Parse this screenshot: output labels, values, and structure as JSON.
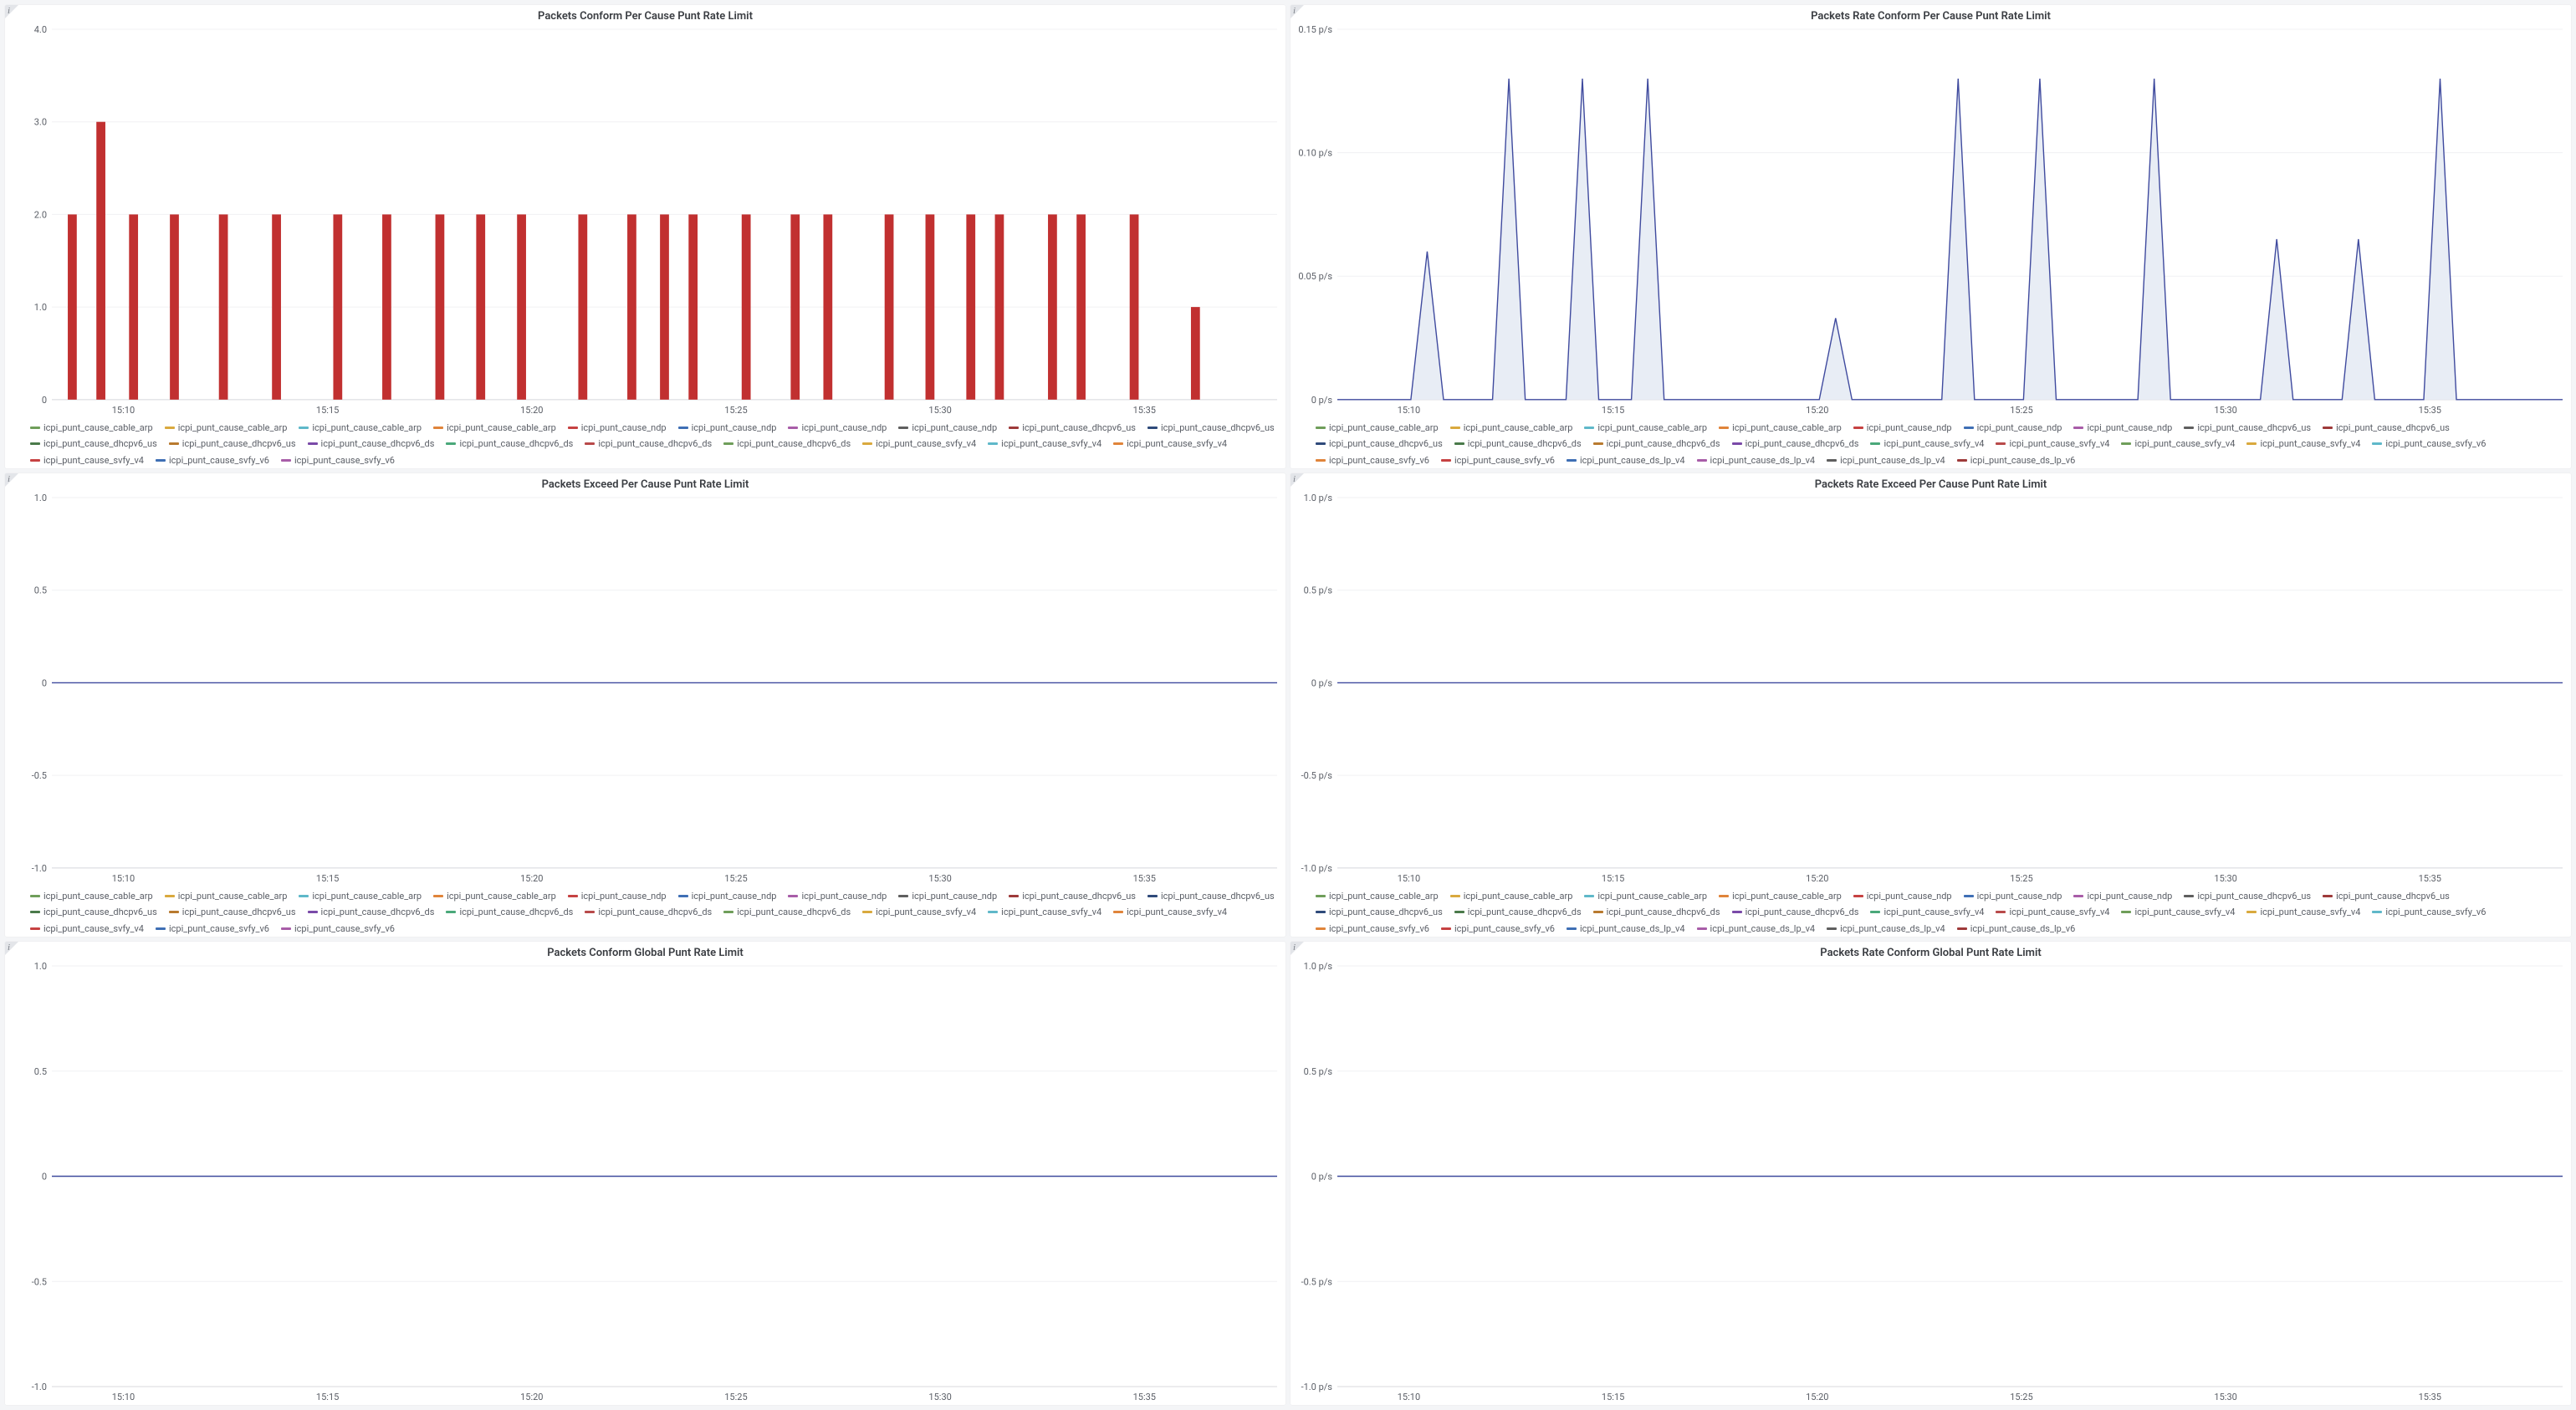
{
  "colors": {
    "bg": "#ffffff",
    "grid": "#f0f1f3",
    "axis": "#d8d9dd",
    "text": "#5a5e66",
    "title": "#3a3d42",
    "corner": "#e3e5e9"
  },
  "x_axis": {
    "ticks": [
      "15:10",
      "15:15",
      "15:20",
      "15:25",
      "15:30",
      "15:35"
    ],
    "domain": [
      0,
      30
    ]
  },
  "legend_colors": [
    "#6f9e5a",
    "#d9a93e",
    "#5fb8c9",
    "#e0843a",
    "#c64242",
    "#3f6fb5",
    "#a85da8",
    "#5f5f5f",
    "#9e3a3a",
    "#2f4a7a",
    "#4a7a4a",
    "#b87a2f",
    "#7a4aa8",
    "#4aa87a",
    "#b84a4a"
  ],
  "legend_a": [
    "icpi_punt_cause_cable_arp",
    "icpi_punt_cause_cable_arp",
    "icpi_punt_cause_cable_arp",
    "icpi_punt_cause_cable_arp",
    "icpi_punt_cause_ndp",
    "icpi_punt_cause_ndp",
    "icpi_punt_cause_ndp",
    "icpi_punt_cause_ndp",
    "icpi_punt_cause_dhcpv6_us",
    "icpi_punt_cause_dhcpv6_us",
    "icpi_punt_cause_dhcpv6_us",
    "icpi_punt_cause_dhcpv6_us",
    "icpi_punt_cause_dhcpv6_ds",
    "icpi_punt_cause_dhcpv6_ds",
    "icpi_punt_cause_dhcpv6_ds",
    "icpi_punt_cause_dhcpv6_ds",
    "icpi_punt_cause_svfy_v4",
    "icpi_punt_cause_svfy_v4",
    "icpi_punt_cause_svfy_v4",
    "icpi_punt_cause_svfy_v4",
    "icpi_punt_cause_svfy_v6",
    "icpi_punt_cause_svfy_v6"
  ],
  "legend_b": [
    "icpi_punt_cause_cable_arp",
    "icpi_punt_cause_cable_arp",
    "icpi_punt_cause_cable_arp",
    "icpi_punt_cause_cable_arp",
    "icpi_punt_cause_ndp",
    "icpi_punt_cause_ndp",
    "icpi_punt_cause_ndp",
    "icpi_punt_cause_dhcpv6_us",
    "icpi_punt_cause_dhcpv6_us",
    "icpi_punt_cause_dhcpv6_us",
    "icpi_punt_cause_dhcpv6_ds",
    "icpi_punt_cause_dhcpv6_ds",
    "icpi_punt_cause_dhcpv6_ds",
    "icpi_punt_cause_svfy_v4",
    "icpi_punt_cause_svfy_v4",
    "icpi_punt_cause_svfy_v4",
    "icpi_punt_cause_svfy_v4",
    "icpi_punt_cause_svfy_v6",
    "icpi_punt_cause_svfy_v6",
    "icpi_punt_cause_svfy_v6",
    "icpi_punt_cause_ds_lp_v4",
    "icpi_punt_cause_ds_lp_v4",
    "icpi_punt_cause_ds_lp_v4",
    "icpi_punt_cause_ds_lp_v6"
  ],
  "panels": [
    {
      "id": "p1",
      "title": "Packets Conform Per Cause Punt Rate Limit",
      "type": "bar",
      "ylim": [
        0,
        4.0
      ],
      "yticks": [
        0,
        1.0,
        2.0,
        3.0,
        4.0
      ],
      "ytick_labels": [
        "0",
        "1.0",
        "2.0",
        "3.0",
        "4.0"
      ],
      "bar_color": "#c13030",
      "bar_width": 0.22,
      "bars": [
        {
          "x": 0.5,
          "y": 2
        },
        {
          "x": 1.2,
          "y": 3
        },
        {
          "x": 2.0,
          "y": 2
        },
        {
          "x": 3.0,
          "y": 2
        },
        {
          "x": 4.2,
          "y": 2
        },
        {
          "x": 5.5,
          "y": 2
        },
        {
          "x": 7.0,
          "y": 2
        },
        {
          "x": 8.2,
          "y": 2
        },
        {
          "x": 9.5,
          "y": 2
        },
        {
          "x": 10.5,
          "y": 2
        },
        {
          "x": 11.5,
          "y": 2
        },
        {
          "x": 13.0,
          "y": 2
        },
        {
          "x": 14.2,
          "y": 2
        },
        {
          "x": 15.0,
          "y": 2
        },
        {
          "x": 15.7,
          "y": 2
        },
        {
          "x": 17.0,
          "y": 2
        },
        {
          "x": 18.2,
          "y": 2
        },
        {
          "x": 19.0,
          "y": 2
        },
        {
          "x": 20.5,
          "y": 2
        },
        {
          "x": 21.5,
          "y": 2
        },
        {
          "x": 22.5,
          "y": 2
        },
        {
          "x": 23.2,
          "y": 2
        },
        {
          "x": 24.5,
          "y": 2
        },
        {
          "x": 25.2,
          "y": 2
        },
        {
          "x": 26.5,
          "y": 2
        },
        {
          "x": 28.0,
          "y": 1
        }
      ],
      "legend": "a"
    },
    {
      "id": "p2",
      "title": "Packets Rate Conform Per Cause Punt Rate Limit",
      "type": "area",
      "ylim": [
        0,
        0.15
      ],
      "yticks": [
        0,
        0.05,
        0.1,
        0.15
      ],
      "ytick_labels": [
        "0 p/s",
        "0.05 p/s",
        "0.10 p/s",
        "0.15 p/s"
      ],
      "line_color": "#3f4a9e",
      "fill_color": "#e8edf5",
      "points": [
        [
          0,
          0
        ],
        [
          1.8,
          0
        ],
        [
          2.2,
          0.06
        ],
        [
          2.6,
          0
        ],
        [
          3.8,
          0
        ],
        [
          4.2,
          0.13
        ],
        [
          4.6,
          0
        ],
        [
          5.6,
          0
        ],
        [
          6.0,
          0.13
        ],
        [
          6.4,
          0
        ],
        [
          7.2,
          0
        ],
        [
          7.6,
          0.13
        ],
        [
          8.0,
          0
        ],
        [
          11.8,
          0
        ],
        [
          12.2,
          0.033
        ],
        [
          12.6,
          0
        ],
        [
          14.8,
          0
        ],
        [
          15.2,
          0.13
        ],
        [
          15.6,
          0
        ],
        [
          16.8,
          0
        ],
        [
          17.2,
          0.13
        ],
        [
          17.6,
          0
        ],
        [
          19.6,
          0
        ],
        [
          20.0,
          0.13
        ],
        [
          20.4,
          0
        ],
        [
          22.6,
          0
        ],
        [
          23.0,
          0.065
        ],
        [
          23.4,
          0
        ],
        [
          24.6,
          0
        ],
        [
          25.0,
          0.065
        ],
        [
          25.4,
          0
        ],
        [
          26.6,
          0
        ],
        [
          27.0,
          0.13
        ],
        [
          27.4,
          0
        ],
        [
          30,
          0
        ]
      ],
      "legend": "b"
    },
    {
      "id": "p3",
      "title": "Packets Exceed Per Cause Punt Rate Limit",
      "type": "line",
      "ylim": [
        -1.0,
        1.0
      ],
      "yticks": [
        -1.0,
        -0.5,
        0,
        0.5,
        1.0
      ],
      "ytick_labels": [
        "-1.0",
        "-0.5",
        "0",
        "0.5",
        "1.0"
      ],
      "line_color": "#3f4a9e",
      "points": [
        [
          0,
          0
        ],
        [
          30,
          0
        ]
      ],
      "legend": "a"
    },
    {
      "id": "p4",
      "title": "Packets Rate Exceed Per Cause Punt Rate Limit",
      "type": "line",
      "ylim": [
        -1.0,
        1.0
      ],
      "yticks": [
        -1.0,
        -0.5,
        0,
        0.5,
        1.0
      ],
      "ytick_labels": [
        "-1.0 p/s",
        "-0.5 p/s",
        "0 p/s",
        "0.5 p/s",
        "1.0 p/s"
      ],
      "line_color": "#3f4a9e",
      "points": [
        [
          0,
          0
        ],
        [
          30,
          0
        ]
      ],
      "legend": "b"
    },
    {
      "id": "p5",
      "title": "Packets Conform Global Punt Rate Limit",
      "type": "line",
      "ylim": [
        -1.0,
        1.0
      ],
      "yticks": [
        -1.0,
        -0.5,
        0,
        0.5,
        1.0
      ],
      "ytick_labels": [
        "-1.0",
        "-0.5",
        "0",
        "0.5",
        "1.0"
      ],
      "line_color": "#3f4a9e",
      "points": [
        [
          0,
          0
        ],
        [
          30,
          0
        ]
      ],
      "legend": "none"
    },
    {
      "id": "p6",
      "title": "Packets Rate Conform Global Punt Rate Limit",
      "type": "line",
      "ylim": [
        -1.0,
        1.0
      ],
      "yticks": [
        -1.0,
        -0.5,
        0,
        0.5,
        1.0
      ],
      "ytick_labels": [
        "-1.0 p/s",
        "-0.5 p/s",
        "0 p/s",
        "0.5 p/s",
        "1.0 p/s"
      ],
      "line_color": "#3f4a9e",
      "points": [
        [
          0,
          0
        ],
        [
          30,
          0
        ]
      ],
      "legend": "none"
    }
  ]
}
